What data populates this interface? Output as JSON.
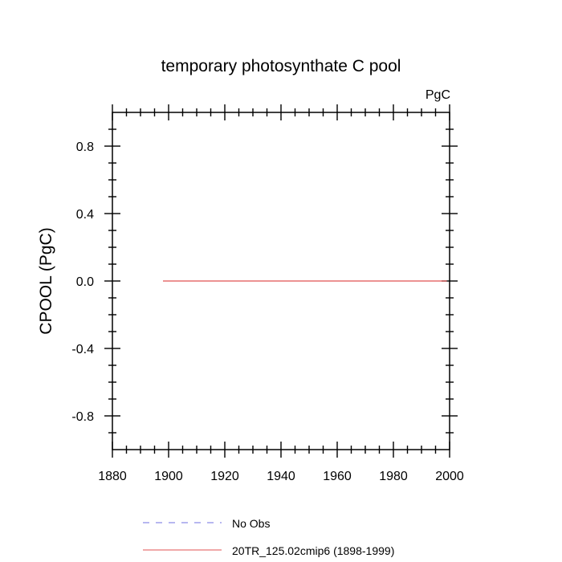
{
  "chart_data": {
    "type": "line",
    "title": "temporary photosynthate C pool",
    "units_label": "PgC",
    "xlabel": "",
    "ylabel": "CPOOL  (PgC)",
    "xlim": [
      1880,
      2000
    ],
    "ylim": [
      -1.0,
      1.0
    ],
    "x_ticks": [
      1880,
      1900,
      1920,
      1940,
      1960,
      1980,
      2000
    ],
    "x_tick_labels": [
      "1880",
      "1900",
      "1920",
      "1940",
      "1960",
      "1980",
      "2000"
    ],
    "y_ticks": [
      -0.8,
      -0.4,
      0.0,
      0.4,
      0.8
    ],
    "y_tick_labels": [
      "-0.8",
      "-0.4",
      "0.0",
      "0.4",
      "0.8"
    ],
    "grid": false,
    "legend_position": "bottom",
    "series": [
      {
        "name": "No Obs",
        "color": "#6f6fe0",
        "dash": "dashed",
        "x": [],
        "y": []
      },
      {
        "name": "20TR_125.02cmip6 (1898-1999)",
        "color": "#e05050",
        "dash": "solid",
        "x": [
          1898,
          1920,
          1940,
          1960,
          1980,
          1999
        ],
        "y": [
          0.0,
          0.0,
          0.0,
          0.0,
          0.0,
          0.0
        ]
      }
    ]
  }
}
